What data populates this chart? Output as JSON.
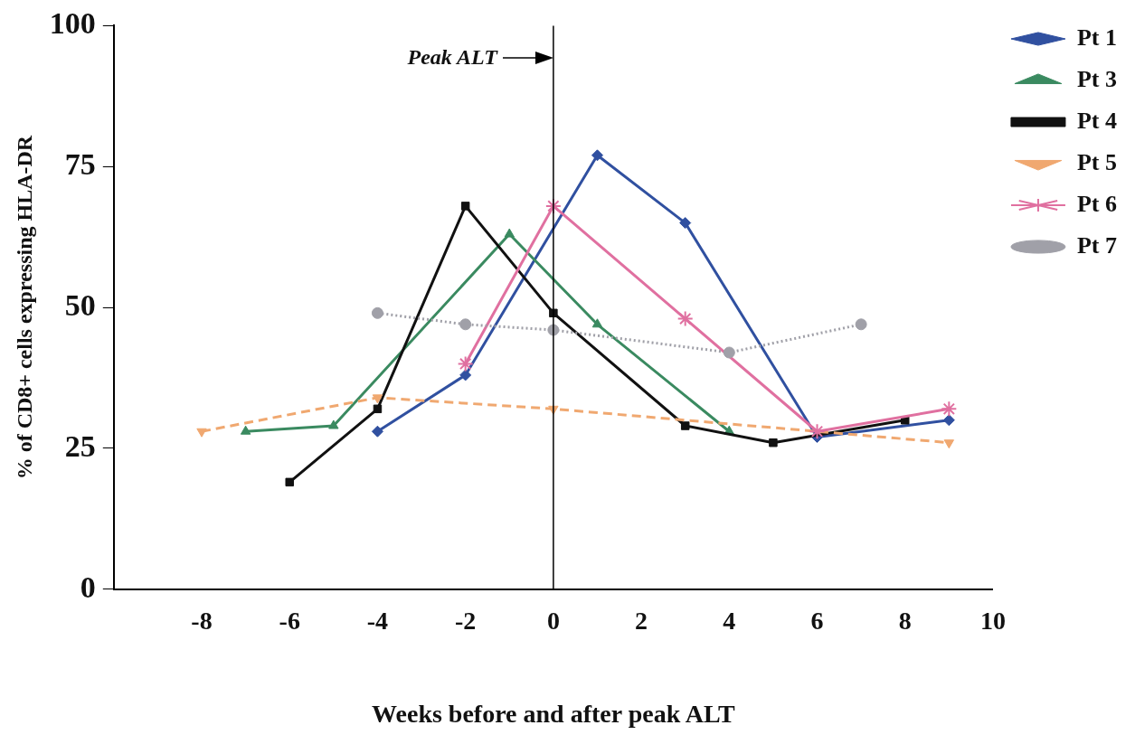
{
  "chart_data": {
    "type": "line",
    "xlabel": "Weeks before and after peak ALT",
    "ylabel": "% of CD8+ cells expressing HLA-DR",
    "xlim": [
      -10,
      10
    ],
    "xticks": [
      {
        "value": -10,
        "label": null
      },
      -8,
      -6,
      -4,
      -2,
      0,
      2,
      4,
      6,
      8,
      10
    ],
    "ylim": [
      0,
      100
    ],
    "yticks": [
      0,
      25,
      50,
      75,
      100
    ],
    "grid": false,
    "legend": "top right",
    "ref_lines": [
      {
        "axis": "x",
        "value": 0,
        "label": "Peak ALT",
        "color": "#000000",
        "line_style": "solid"
      }
    ],
    "series": [
      {
        "name": "Pt 1",
        "color": "#3050a0",
        "marker": "diamond",
        "line_style": "solid",
        "x": [
          -4,
          -2,
          1,
          3,
          6,
          9
        ],
        "values": [
          28,
          38,
          77,
          65,
          27,
          30
        ]
      },
      {
        "name": "Pt 3",
        "color": "#3a8a60",
        "marker": "triangle",
        "line_style": "solid",
        "x": [
          -7,
          -5,
          -1,
          1,
          4
        ],
        "values": [
          28,
          29,
          63,
          47,
          28
        ]
      },
      {
        "name": "Pt 4",
        "color": "#111111",
        "marker": "square",
        "line_style": "solid",
        "x": [
          -6,
          -4,
          -2,
          0,
          3,
          5,
          8
        ],
        "values": [
          19,
          32,
          68,
          49,
          29,
          26,
          30
        ]
      },
      {
        "name": "Pt 5",
        "color": "#f0a870",
        "marker": "triangle-down",
        "line_style": "dashed",
        "x": [
          -8,
          -4,
          0,
          9
        ],
        "values": [
          28,
          34,
          32,
          26
        ]
      },
      {
        "name": "Pt 6",
        "color": "#e070a0",
        "marker": "cross",
        "line_style": "solid",
        "x": [
          -2,
          0,
          3,
          6,
          9
        ],
        "values": [
          40,
          68,
          48,
          28,
          32
        ]
      },
      {
        "name": "Pt 7",
        "color": "#a0a0a8",
        "marker": "circle",
        "line_style": "dotted",
        "x": [
          -4,
          -2,
          0,
          4,
          7
        ],
        "values": [
          49,
          47,
          46,
          42,
          47
        ]
      }
    ]
  }
}
